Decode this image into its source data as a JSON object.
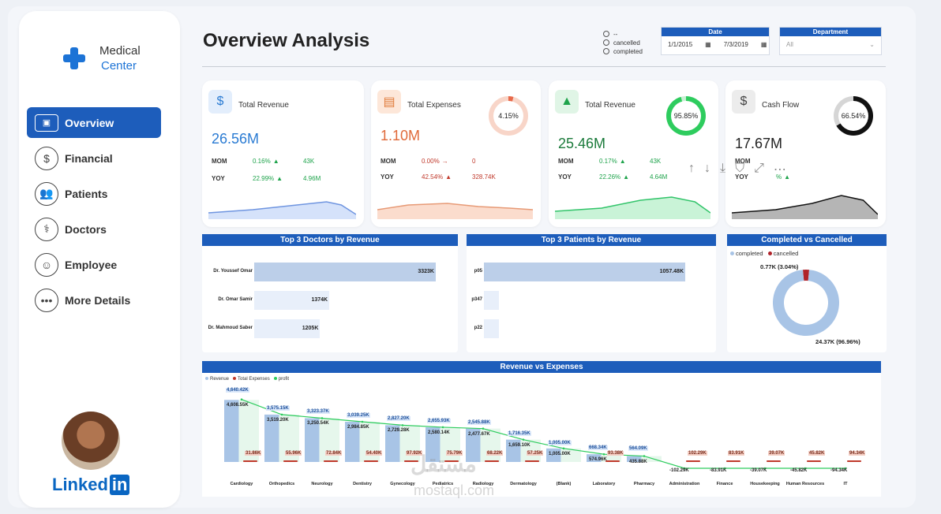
{
  "brand": {
    "line1": "Medical",
    "line2": "Center"
  },
  "nav": [
    {
      "label": "Overview",
      "icon": "monitor-icon",
      "glyph": "▣",
      "active": true
    },
    {
      "label": "Financial",
      "icon": "dollar-icon",
      "glyph": "$"
    },
    {
      "label": "Patients",
      "icon": "people-icon",
      "glyph": "👥"
    },
    {
      "label": "Doctors",
      "icon": "doctor-icon",
      "glyph": "⚕"
    },
    {
      "label": "Employee",
      "icon": "team-icon",
      "glyph": "☺"
    },
    {
      "label": "More Details",
      "icon": "more-icon",
      "glyph": "•••"
    }
  ],
  "footer": {
    "linkedin": "Linked",
    "linkedin_in": "in"
  },
  "header": {
    "title": "Overview Analysis",
    "status_options": [
      "--",
      "cancelled",
      "completed"
    ],
    "date": {
      "label": "Date",
      "from": "1/1/2015",
      "to": "7/3/2019"
    },
    "department": {
      "label": "Department",
      "value": "All"
    }
  },
  "kpis": [
    {
      "label": "Total Revenue",
      "glyph": "$",
      "value": "26.56M",
      "value_color": "#2a7bd3",
      "icon_bg": "#e3eefc",
      "icon_color": "#2a7bd3",
      "mom_label": "MOM",
      "mom_pct": "0.16%",
      "mom_dir": "▲",
      "mom_val": "43K",
      "yoy_label": "YOY",
      "yoy_pct": "22.99%",
      "yoy_dir": "▲",
      "yoy_val": "4.96M",
      "trend": "up",
      "spark_fill": "#d5e2fa",
      "spark_line": "#6f95e0"
    },
    {
      "label": "Total Expenses",
      "glyph": "▤",
      "value": "1.10M",
      "value_color": "#e06a3a",
      "icon_bg": "#fde7d9",
      "icon_color": "#e07b3a",
      "mom_label": "MOM",
      "mom_pct": "0.00%",
      "mom_dir": "→",
      "mom_val": "0",
      "yoy_label": "YOY",
      "yoy_pct": "42.54%",
      "yoy_dir": "▲",
      "yoy_val": "328.74K",
      "trend": "down",
      "ring": "4.15%",
      "ring_frac": 0.0415,
      "ring_color": "#e8694a",
      "ring_track": "#f8d5c8",
      "spark_fill": "#fbdccd",
      "spark_line": "#e79a76"
    },
    {
      "label": "Total Revenue",
      "glyph": "▲",
      "value": "25.46M",
      "value_color": "#1a7a3a",
      "icon_bg": "#e0f5e6",
      "icon_color": "#1ea34b",
      "mom_label": "MOM",
      "mom_pct": "0.17%",
      "mom_dir": "▲",
      "mom_val": "43K",
      "yoy_label": "YOY",
      "yoy_pct": "22.26%",
      "yoy_dir": "▲",
      "yoy_val": "4.64M",
      "trend": "up",
      "ring": "95.85%",
      "ring_frac": 0.9585,
      "ring_color": "#2ecc5e",
      "ring_track": "#c9f0d4",
      "spark_fill": "#c9f3d7",
      "spark_line": "#32c46a"
    },
    {
      "label": "Cash Flow",
      "glyph": "$",
      "value": "17.67M",
      "value_color": "#222",
      "icon_bg": "#ececec",
      "icon_color": "#444",
      "mom_label": "MOM",
      "mom_pct": "",
      "mom_dir": "",
      "mom_val": "",
      "yoy_label": "YOY",
      "yoy_pct": "%",
      "yoy_dir": "▲",
      "yoy_val": "",
      "trend": "up",
      "ring": "66.54%",
      "ring_frac": 0.6654,
      "ring_color": "#111",
      "ring_track": "#d6d6d6",
      "spark_fill": "#b5b5b5",
      "spark_line": "#111"
    }
  ],
  "doctors": {
    "title": "Top 3 Doctors by Revenue",
    "items": [
      {
        "name": "Dr. Youssef Omar",
        "value": 3323,
        "label": "3323K"
      },
      {
        "name": "Dr. Omar Samir",
        "value": 1374,
        "label": "1374K"
      },
      {
        "name": "Dr. Mahmoud Saber",
        "value": 1205,
        "label": "1205K"
      }
    ]
  },
  "patients": {
    "title": "Top 3 Patients by Revenue",
    "items": [
      {
        "name": "p05",
        "value": 1057.48,
        "label": "1057.48K"
      },
      {
        "name": "p347",
        "value": 80,
        "label": ""
      },
      {
        "name": "p22",
        "value": 78,
        "label": ""
      }
    ]
  },
  "completion": {
    "title": "Completed vs Cancelled",
    "legend": [
      {
        "name": "completed",
        "color": "#a8c4e6"
      },
      {
        "name": "cancelled",
        "color": "#b0232a"
      }
    ],
    "completed": 24.37,
    "cancelled": 0.77,
    "completed_label": "24.37K (96.96%)",
    "cancelled_label": "0.77K (3.04%)"
  },
  "chart_data": {
    "type": "bar",
    "title": "Revenue vs Expenses",
    "legend": [
      {
        "name": "Revenue",
        "color": "#a8c4e6"
      },
      {
        "name": "Total Expenses",
        "color": "#c0392b"
      },
      {
        "name": "profit",
        "color": "#2ecc5e"
      }
    ],
    "categories": [
      "Cardiology",
      "Orthopedics",
      "Neurology",
      "Dentistry",
      "Gynecology",
      "Pediatrics",
      "Radiology",
      "Dermatology",
      "(Blank)",
      "Laboratory",
      "Pharmacy",
      "Administration",
      "Finance",
      "Housekeeping",
      "Human Resources",
      "IT"
    ],
    "revenue": [
      4640.42,
      3575.15,
      3323.37,
      3039.25,
      2827.2,
      2655.93,
      2545.88,
      1716.35,
      1005.0,
      668.34,
      564.09,
      0,
      0,
      0,
      0,
      0
    ],
    "revenue_labels": [
      "4,640.42K",
      "3,575.15K",
      "3,323.37K",
      "3,039.25K",
      "2,827.20K",
      "2,655.93K",
      "2,545.88K",
      "1,716.35K",
      "1,005.00K",
      "668.34K",
      "564.09K",
      "",
      "",
      "",
      "",
      ""
    ],
    "profit": [
      4608.55,
      3519.2,
      3250.54,
      2984.85,
      2729.28,
      2580.14,
      2477.67,
      1659.1,
      1005.0,
      574.96,
      435.88,
      -102.29,
      -83.91,
      -39.07,
      -45.82,
      -94.34
    ],
    "profit_labels": [
      "4,608.55K",
      "3,519.20K",
      "3,250.54K",
      "2,984.85K",
      "2,729.28K",
      "2,580.14K",
      "2,477.67K",
      "1,659.10K",
      "1,005.00K",
      "574.96K",
      "435.88K",
      "-102.29K",
      "-83.91K",
      "-39.07K",
      "-45.82K",
      "-94.34K"
    ],
    "expenses": [
      31.86,
      55.96,
      72.84,
      54.4,
      97.92,
      75.79,
      68.22,
      57.25,
      0,
      93.38,
      0,
      102.29,
      83.91,
      39.07,
      45.82,
      94.34
    ],
    "expense_labels": [
      "31.86K",
      "55.96K",
      "72.84K",
      "54.40K",
      "97.92K",
      "75.79K",
      "68.22K",
      "57.25K",
      "",
      "93.38K",
      "",
      "102.29K",
      "83.91K",
      "39.07K",
      "45.82K",
      "94.34K"
    ],
    "ylim": [
      -150,
      4800
    ]
  },
  "watermark": {
    "top": "مستقل",
    "bottom": "mostaql.com"
  }
}
